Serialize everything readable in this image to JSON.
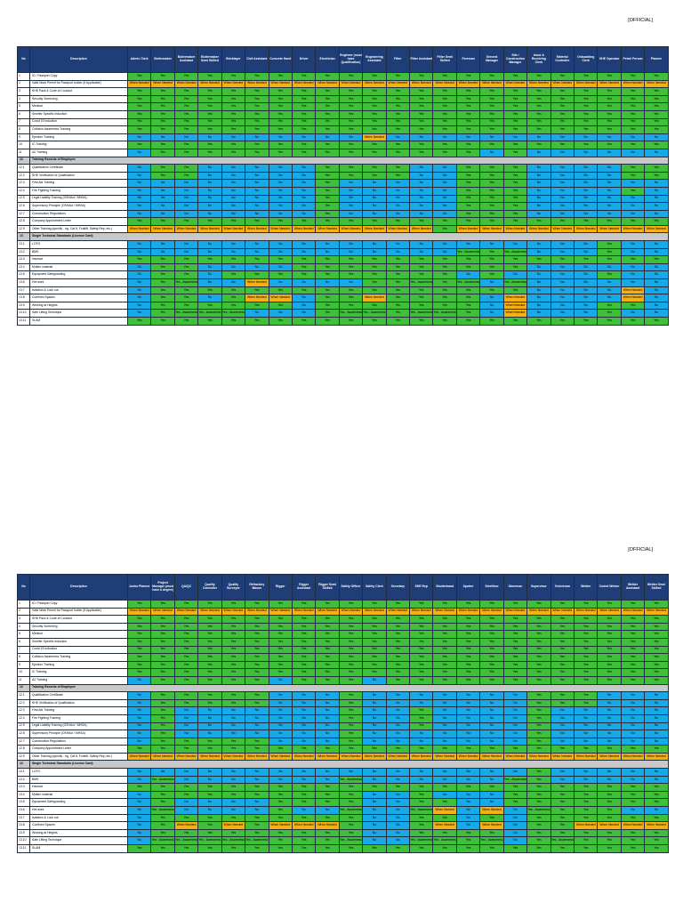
{
  "colors": {
    "yes": "#3fbf3a",
    "no": "#17a9e8",
    "when_needed": "#f5b012",
    "header": "#1f3e78",
    "section": "#c9c9c9"
  },
  "legend_codes": {
    "Y": "Yes",
    "N": "No",
    "W": "When Needed",
    "A": "Yes - Awareness"
  },
  "sheets": [
    {
      "classification": "[OFFICIAL]",
      "header": {
        "no": "No",
        "description": "Description"
      },
      "roles": [
        "Admin Clerk",
        "Boilermaker",
        "Boilermaker Assistant",
        "Boilermaker Semi Skilled",
        "Bricklayer",
        "Civil Assistant",
        "Concrete Hand",
        "Driver",
        "Electrician",
        "Engineer (must have Qualification)",
        "Engineering Assistant",
        "Fitter",
        "Fitter Assistant",
        "Fitter Semi Skilled",
        "Foreman",
        "General Manager",
        "Site / Construction Manager",
        "Issue & Receiving Clerk",
        "Material Controller",
        "Onboarding Clerk",
        "SHE Operator",
        "Petrol Person",
        "Planner"
      ],
      "rows": [
        {
          "no": "1",
          "desc": "ID / Passport Copy",
          "v": "YYYYYYYYYYYYYYYYYYYYYYY"
        },
        {
          "no": "2",
          "desc": "Valid Work Permit for Passport holder (if Applicable)",
          "v": "WWWWWWWWWWWWWWWWWWWWWWW"
        },
        {
          "no": "3",
          "desc": "SHE Pack & Code of Conduct",
          "v": "YYYYYYYYYYYYYYYYYYYYYYY"
        },
        {
          "no": "4",
          "desc": "Security Screening",
          "v": "YYYYYYYYYYYYYYYYYYYYYYY"
        },
        {
          "no": "5",
          "desc": "Medical",
          "v": "YYYYYYYYYYYYYYYYYYYYYYY"
        },
        {
          "no": "6",
          "desc": "Smelter Specific Induction",
          "v": "YYYYYYYYYYYYYYYYYYYYYYY"
        },
        {
          "no": "7",
          "desc": "Covid 19 Induction",
          "v": "YYYYYYYYYYYYYYYYYYYYYYY"
        },
        {
          "no": "8",
          "desc": "Collision Awareness Training",
          "v": "YYYYYYYYYYYYYYYYYYYYYYY"
        },
        {
          "no": "9",
          "desc": "Ejection Training",
          "v": "NNNNNNNNNNWNNNNNNNNNNNN"
        },
        {
          "no": "10",
          "desc": "IC Training",
          "v": "YYYYYYYYYYYYYYYYYYYYYYY"
        },
        {
          "no": "11",
          "desc": "A2 Training",
          "v": "NYYYYYYYYYYYYYYNYNNNNNN"
        },
        {
          "section": true,
          "no": "12",
          "desc": "Training Records of Employee"
        },
        {
          "no": "12.1",
          "desc": "Qualification Certificate",
          "v": "NYYNNNNNYYYYNNYYYNNNNYY"
        },
        {
          "no": "12.2",
          "desc": "SHE Verification of Qualification",
          "v": "NYYNNNNNYYYYNNYYYNNNNYY"
        },
        {
          "no": "12.3",
          "desc": "First Aid Training",
          "v": "NNNNNNNNYNNNNNYYYNNNNNN"
        },
        {
          "no": "12.4",
          "desc": "Fire Fighting Training",
          "v": "NNNNNNNNYNNNNNYYYNNNNYN"
        },
        {
          "no": "12.5",
          "desc": "Legal Liability Training (OSHAct / MHSA)",
          "v": "NNNNNNNNYNNNNNYYYNNNNNN"
        },
        {
          "no": "12.6",
          "desc": "Supervisory Principle (OSHAct / MHSA)",
          "v": "NNNNNNNNYNNNNNYYYNNNNNN"
        },
        {
          "no": "12.7",
          "desc": "Construction Regulations",
          "v": "NNNNNNNNYNNNNNYYYNNNNNN"
        },
        {
          "no": "12.8",
          "desc": "Company Appointment Letter",
          "v": "YYYYYYYYYYYYYYYYYYYYYYY"
        },
        {
          "no": "12.9",
          "desc": "Other Training (specify - eg. Cat 8, Forklift, Safety Rep, etc.)",
          "v": "WWWWWWWWWWWWWYWWWWWWWWW"
        },
        {
          "section": true,
          "no": "13",
          "desc": "Single Technical Standards (License Card)"
        },
        {
          "no": "13.1",
          "desc": "LOTO",
          "v": "NNNNNNNNNNNNNNNNNNNNYNN"
        },
        {
          "no": "13.2",
          "desc": "BMS",
          "v": "NNNNNNNNNNNNNNAYANNNYNN"
        },
        {
          "no": "13.3",
          "desc": "Hazmat",
          "v": "YYYYYYYYYYYYYYYYYYYYYYY"
        },
        {
          "no": "13.4",
          "desc": "Molten material",
          "v": "NYYNNNNYYYYYYYYYYNNNNNN"
        },
        {
          "no": "13.5",
          "desc": "Equipment Safeguarding",
          "v": "NYYNYYYYYYYYYYNYNNNNYNN"
        },
        {
          "no": "13.6",
          "desc": "Hot work",
          "v": "NYANNWNNNNYYAYANANNNNNN"
        },
        {
          "no": "13.7",
          "desc": "Isolation & Lock out",
          "v": "NYYYYYYYYYYYYYYYYNNNNWN"
        },
        {
          "no": "13.8",
          "desc": "Confined Spaces",
          "v": "NYYNYWWNYYWYYYYNWNNNNWN"
        },
        {
          "no": "13.9",
          "desc": "Working at Heights",
          "v": "NYYYYYYNYYYYYYYNWNNNYYN"
        },
        {
          "no": "13.10",
          "desc": "Safe Lifting Technique",
          "v": "NYAAANNNYAAYAAYNWNNNYNN"
        },
        {
          "no": "13.11",
          "desc": "SLAM",
          "v": "YYYYYYYYYYYYYYYYYYYYYYY"
        }
      ]
    },
    {
      "classification": "[OFFICIAL]",
      "header": {
        "no": "No",
        "description": "Description"
      },
      "roles": [
        "Junior Planner",
        "Project Manager (must have a degree)",
        "QA/QC",
        "Quality Controller",
        "Quality Surveyor",
        "Refractory Mason",
        "Rigger",
        "Rigger Assistant",
        "Rigger Semi Skilled",
        "Safety Officer",
        "Safety Clerk",
        "Secretary",
        "SHE Rep",
        "Shutterhand",
        "Spotter",
        "Steelfixer",
        "Storeman",
        "Supervisor",
        "Technician",
        "Welder",
        "Coded Welder",
        "Welder Assistant",
        "Welder Semi Skilled"
      ],
      "rows": [
        {
          "no": "1",
          "desc": "ID / Passport Copy",
          "v": "YYYYYYYYYYYYYYYYYYYYYYY"
        },
        {
          "no": "2",
          "desc": "Valid Work Permit for Passport holder (if Applicable)",
          "v": "WWWWWWWWWWWWWWWWWWWWWWW"
        },
        {
          "no": "3",
          "desc": "SHE Pack & Code of Conduct",
          "v": "YYYYYYYYYYYYYYYYYYYYYYY"
        },
        {
          "no": "4",
          "desc": "Security Screening",
          "v": "YYYYYYYYYYYYYYYYYYYYYYY"
        },
        {
          "no": "5",
          "desc": "Medical",
          "v": "YYYYYYYYYYYYYYYYYYYYYYY"
        },
        {
          "no": "6",
          "desc": "Smelter Specific Induction",
          "v": "YYYYYYYYYYYYYYYYYYYYYYY"
        },
        {
          "no": "7",
          "desc": "Covid 19 Induction",
          "v": "YYYYYYYYYYYYYYYYYYYYYYY"
        },
        {
          "no": "8",
          "desc": "Collision Awareness Training",
          "v": "YYYYYYYYYYYYYYYYYYYYYYY"
        },
        {
          "no": "9",
          "desc": "Ejection Training",
          "v": "YYYYYYYYYYYYYYYYYYYYYYY"
        },
        {
          "no": "10",
          "desc": "IC Training",
          "v": "YYYYYYYYYYYYYYYYYYYYYYY"
        },
        {
          "no": "11",
          "desc": "A2 Training",
          "v": "NYYYYYNYYYNYYYYYYYYYYYY"
        },
        {
          "section": true,
          "no": "12",
          "desc": "Training Records of Employee"
        },
        {
          "no": "12.1",
          "desc": "Qualification Certificate",
          "v": "NYYYYYNNNYNNNNNNNYYYNNN"
        },
        {
          "no": "12.2",
          "desc": "SHE Verification of Qualification",
          "v": "NYYYYYNNNYNNNNNNNYYYNNN"
        },
        {
          "no": "12.3",
          "desc": "First Aid Training",
          "v": "NYNNNNNNNYNNYNNNNYNNNNN"
        },
        {
          "no": "12.4",
          "desc": "Fire Fighting Training",
          "v": "NYNNNNNNNYNNYNNNNYNNNNN"
        },
        {
          "no": "12.5",
          "desc": "Legal Liability Training (OSHAct / MHSA)",
          "v": "NYNNNNNNNYNNYNNNNYNNNNN"
        },
        {
          "no": "12.6",
          "desc": "Supervisory Principle (OSHAct / MHSA)",
          "v": "NYNNNNNNNYNNNNNNNYNNNNN"
        },
        {
          "no": "12.7",
          "desc": "Construction Regulations",
          "v": "NYYYYYNNNYNNNNNNNYNNNNN"
        },
        {
          "no": "12.8",
          "desc": "Company Appointment Letter",
          "v": "YYYYYYYYYYYYYYYYYYYYYYY"
        },
        {
          "no": "12.9",
          "desc": "Other Training (specify - eg. Cat 8, Forklift, Safety Rep, etc.)",
          "v": "WWWWWWWWWWWWWWWWWWWWWWW"
        },
        {
          "section": true,
          "no": "13",
          "desc": "Single Technical Standards (License Card)"
        },
        {
          "no": "13.1",
          "desc": "LOTO",
          "v": "NNNNNNNNNNNNNNNNNYNNNNN"
        },
        {
          "no": "13.2",
          "desc": "BMS",
          "v": "NANNNNNNNANNNNNNAYNNNNN"
        },
        {
          "no": "13.3",
          "desc": "Hazmat",
          "v": "YYYYYYYYYYYYYYYYYYYYYYY"
        },
        {
          "no": "13.4",
          "desc": "Molten material",
          "v": "NYYYYYYYYYNNYNNNYYYYYYY"
        },
        {
          "no": "13.5",
          "desc": "Equipment Safeguarding",
          "v": "NYNNNNYYYYNNYYNNYYYYYYY"
        },
        {
          "no": "13.6",
          "desc": "Hot work",
          "v": "NANNNNYNNANNAWNWNAYYYNN"
        },
        {
          "no": "13.7",
          "desc": "Isolation & Lock out",
          "v": "NYYYYYYYYYNNYYNYNYYYYYY"
        },
        {
          "no": "13.8",
          "desc": "Confined Spaces",
          "v": "NYWYWYWWWYNNYWNWNYYWWWW"
        },
        {
          "no": "13.9",
          "desc": "Working at Heights",
          "v": "NYYYYYYYYYNNYYYYNYYYYYY"
        },
        {
          "no": "13.10",
          "desc": "Safe Lifting Technique",
          "v": "NAAAAAYYYANNAAYANYAYYYY"
        },
        {
          "no": "13.11",
          "desc": "SLAM",
          "v": "YYYYYYYYYYYYYYYYYYYYYYY"
        }
      ]
    }
  ]
}
